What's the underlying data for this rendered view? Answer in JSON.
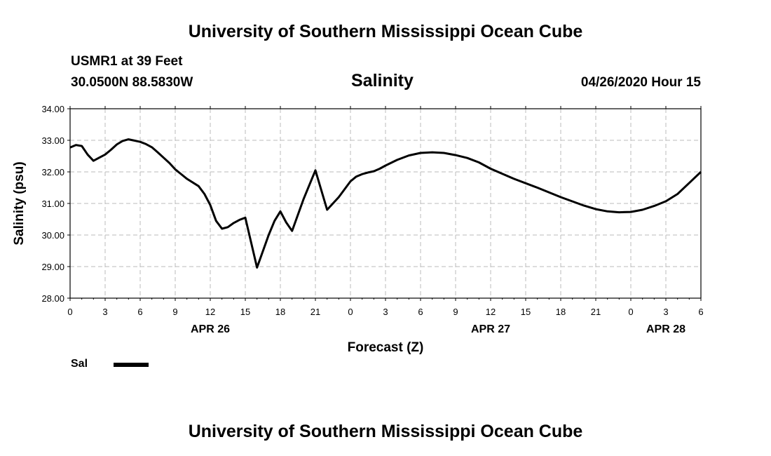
{
  "title_top": "University of Southern Mississippi Ocean Cube",
  "title_bottom": "University of Southern Mississippi Ocean Cube",
  "station": "USMR1 at 39 Feet",
  "coords": "30.0500N 88.5830W",
  "subtitle": "Salinity",
  "datetime": "04/26/2020 Hour 15",
  "legend": {
    "label": "Sal",
    "color": "#000000"
  },
  "chart_data": {
    "type": "line",
    "title": "Salinity",
    "xlabel": "Forecast (Z)",
    "ylabel": "Salinity (psu)",
    "ylim": [
      28.0,
      34.0
    ],
    "yticks": [
      "28.00",
      "29.00",
      "30.00",
      "31.00",
      "32.00",
      "33.00",
      "34.00"
    ],
    "xlim": [
      0,
      54
    ],
    "xticks": [
      "0",
      "3",
      "6",
      "9",
      "12",
      "15",
      "18",
      "21",
      "0",
      "3",
      "6",
      "9",
      "12",
      "15",
      "18",
      "21",
      "0",
      "3",
      "6"
    ],
    "date_labels": [
      {
        "text": "APR 26",
        "x": 12
      },
      {
        "text": "APR 27",
        "x": 36
      },
      {
        "text": "APR 28",
        "x": 51
      }
    ],
    "grid": true,
    "series": [
      {
        "name": "Sal",
        "color": "#000000",
        "x": [
          0,
          0.5,
          1,
          1.5,
          2,
          2.5,
          3,
          3.5,
          4,
          4.5,
          5,
          5.5,
          6,
          6.5,
          7,
          7.5,
          8,
          8.5,
          9,
          10,
          11,
          11.5,
          12,
          12.5,
          13,
          13.5,
          14,
          14.5,
          15,
          16,
          17,
          17.5,
          18,
          18.5,
          19,
          20,
          21,
          22,
          23,
          24,
          24.5,
          25,
          25.5,
          26,
          26.5,
          27,
          28,
          29,
          30,
          31,
          32,
          33,
          34,
          35,
          36,
          38,
          40,
          42,
          44,
          45,
          46,
          47,
          48,
          49,
          50,
          51,
          52,
          53,
          54
        ],
        "values": [
          32.77,
          32.85,
          32.82,
          32.55,
          32.35,
          32.45,
          32.55,
          32.7,
          32.87,
          32.98,
          33.03,
          32.99,
          32.95,
          32.88,
          32.78,
          32.62,
          32.45,
          32.28,
          32.08,
          31.78,
          31.55,
          31.3,
          30.95,
          30.45,
          30.2,
          30.25,
          30.38,
          30.48,
          30.55,
          28.97,
          30.0,
          30.45,
          30.75,
          30.4,
          30.13,
          31.15,
          32.05,
          30.8,
          31.2,
          31.7,
          31.85,
          31.93,
          31.98,
          32.02,
          32.1,
          32.2,
          32.38,
          32.52,
          32.6,
          32.62,
          32.6,
          32.53,
          32.44,
          32.3,
          32.1,
          31.78,
          31.5,
          31.2,
          30.93,
          30.82,
          30.75,
          30.72,
          30.73,
          30.8,
          30.92,
          31.07,
          31.3,
          31.65,
          32.0
        ]
      }
    ]
  }
}
